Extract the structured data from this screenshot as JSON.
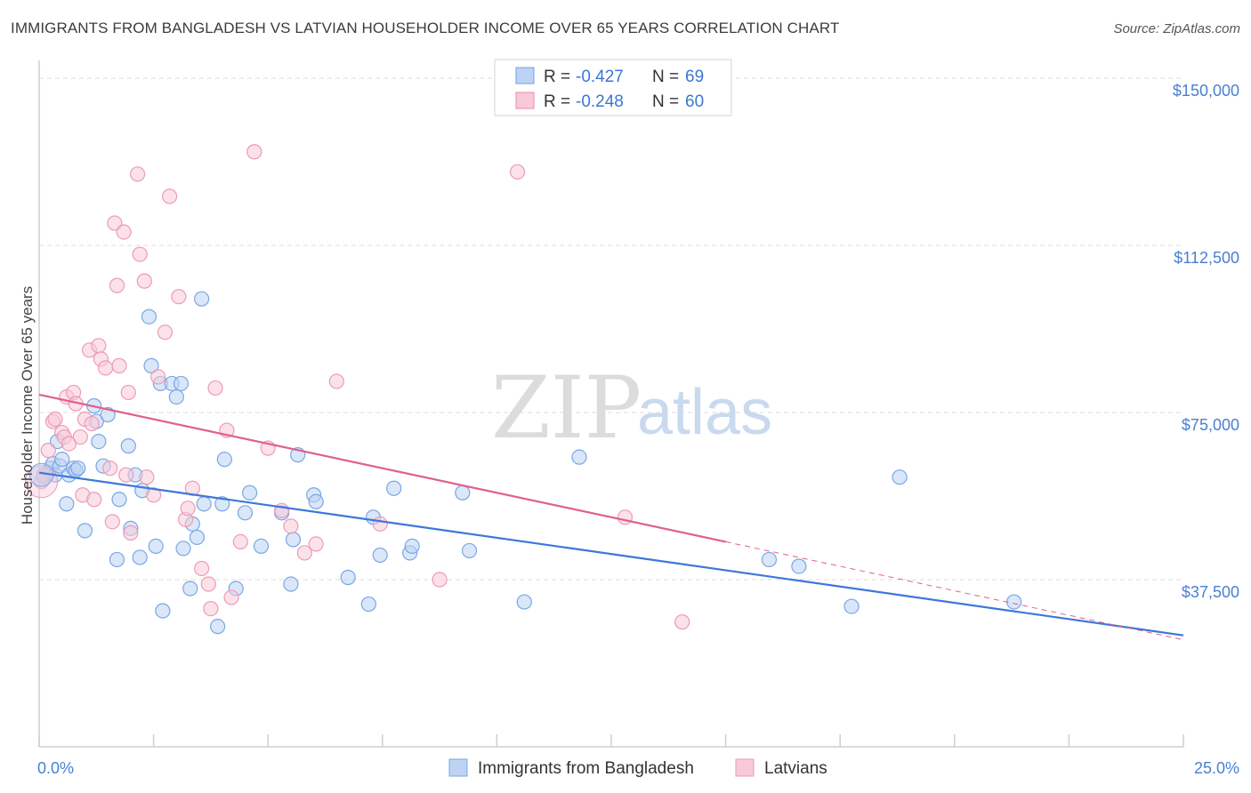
{
  "title": "IMMIGRANTS FROM BANGLADESH VS LATVIAN HOUSEHOLDER INCOME OVER 65 YEARS CORRELATION CHART",
  "source": "Source: ZipAtlas.com",
  "watermark": {
    "zip": "ZIP",
    "atlas": "atlas"
  },
  "legend": {
    "r_label": "R =",
    "n_label": "N =",
    "entries": [
      {
        "r": "-0.427",
        "n": "69",
        "color": "#6fa2e8",
        "fill": "#bcd3f3"
      },
      {
        "r": "-0.248",
        "n": "60",
        "color": "#e88aa8",
        "fill": "#f8cad8"
      }
    ]
  },
  "chart_data": {
    "type": "scatter",
    "ylabel": "Householder Income Over 65 years",
    "xlim": [
      0,
      25
    ],
    "ylim": [
      0,
      152000
    ],
    "x_tick_labels": [
      "0.0%",
      "25.0%"
    ],
    "y_ticks": [
      {
        "value": 37500,
        "label": "$37,500"
      },
      {
        "value": 75000,
        "label": "$75,000"
      },
      {
        "value": 112500,
        "label": "$112,500"
      },
      {
        "value": 150000,
        "label": "$150,000"
      }
    ],
    "grid": true,
    "legend_position": "top-center",
    "series": [
      {
        "name": "Immigrants from Bangladesh",
        "color": "#3b78d8",
        "fill": "#bcd3f3",
        "stroke": "#7aa6e6",
        "trend": {
          "x": [
            0,
            25
          ],
          "y": [
            61500,
            25000
          ]
        },
        "points": [
          [
            0.1,
            60500
          ],
          [
            0.2,
            61500
          ],
          [
            0.25,
            62500
          ],
          [
            0.3,
            63500
          ],
          [
            0.35,
            61000
          ],
          [
            0.4,
            68500
          ],
          [
            0.45,
            63000
          ],
          [
            0.5,
            64500
          ],
          [
            0.6,
            54500
          ],
          [
            0.65,
            61000
          ],
          [
            0.75,
            62500
          ],
          [
            0.8,
            62000
          ],
          [
            0.85,
            62500
          ],
          [
            1.0,
            48500
          ],
          [
            1.2,
            76500
          ],
          [
            1.25,
            73000
          ],
          [
            1.3,
            68500
          ],
          [
            1.4,
            63000
          ],
          [
            1.5,
            74500
          ],
          [
            1.7,
            42000
          ],
          [
            1.75,
            55500
          ],
          [
            1.95,
            67500
          ],
          [
            2.0,
            49000
          ],
          [
            2.1,
            61000
          ],
          [
            2.2,
            42500
          ],
          [
            2.25,
            57500
          ],
          [
            2.4,
            96500
          ],
          [
            2.45,
            85500
          ],
          [
            2.55,
            45000
          ],
          [
            2.65,
            81500
          ],
          [
            2.7,
            30500
          ],
          [
            2.9,
            81500
          ],
          [
            3.0,
            78500
          ],
          [
            3.1,
            81500
          ],
          [
            3.15,
            44500
          ],
          [
            3.3,
            35500
          ],
          [
            3.35,
            50000
          ],
          [
            3.45,
            47000
          ],
          [
            3.55,
            100500
          ],
          [
            3.6,
            54500
          ],
          [
            3.9,
            27000
          ],
          [
            4.0,
            54500
          ],
          [
            4.05,
            64500
          ],
          [
            4.3,
            35500
          ],
          [
            4.5,
            52500
          ],
          [
            4.6,
            57000
          ],
          [
            4.85,
            45000
          ],
          [
            5.3,
            52500
          ],
          [
            5.5,
            36500
          ],
          [
            5.55,
            46500
          ],
          [
            5.65,
            65500
          ],
          [
            6.0,
            56500
          ],
          [
            6.05,
            55000
          ],
          [
            6.75,
            38000
          ],
          [
            7.2,
            32000
          ],
          [
            7.3,
            51500
          ],
          [
            7.45,
            43000
          ],
          [
            7.75,
            58000
          ],
          [
            8.1,
            43500
          ],
          [
            8.15,
            45000
          ],
          [
            9.25,
            57000
          ],
          [
            9.4,
            44000
          ],
          [
            10.6,
            32500
          ],
          [
            11.8,
            65000
          ],
          [
            15.95,
            42000
          ],
          [
            16.6,
            40500
          ],
          [
            17.75,
            31500
          ],
          [
            18.8,
            60500
          ],
          [
            21.3,
            32500
          ]
        ]
      },
      {
        "name": "Latvians",
        "color": "#e0608a",
        "fill": "#f8cad8",
        "stroke": "#ee9ab5",
        "trend": {
          "x": [
            0,
            15
          ],
          "y": [
            79000,
            46000
          ]
        },
        "trend_dashed": {
          "x": [
            15,
            25
          ],
          "y": [
            46000,
            24000
          ]
        },
        "points": [
          [
            0.05,
            59500
          ],
          [
            0.1,
            61000
          ],
          [
            0.2,
            66500
          ],
          [
            0.3,
            73000
          ],
          [
            0.35,
            73500
          ],
          [
            0.5,
            70500
          ],
          [
            0.55,
            69500
          ],
          [
            0.6,
            78500
          ],
          [
            0.65,
            68000
          ],
          [
            0.75,
            79500
          ],
          [
            0.8,
            77000
          ],
          [
            0.9,
            69500
          ],
          [
            0.95,
            56500
          ],
          [
            1.0,
            73500
          ],
          [
            1.1,
            89000
          ],
          [
            1.15,
            72500
          ],
          [
            1.2,
            55500
          ],
          [
            1.3,
            90000
          ],
          [
            1.35,
            87000
          ],
          [
            1.45,
            85000
          ],
          [
            1.55,
            62500
          ],
          [
            1.6,
            50500
          ],
          [
            1.65,
            117500
          ],
          [
            1.7,
            103500
          ],
          [
            1.75,
            85500
          ],
          [
            1.85,
            115500
          ],
          [
            1.9,
            61000
          ],
          [
            1.95,
            79500
          ],
          [
            2.0,
            48000
          ],
          [
            2.15,
            128500
          ],
          [
            2.2,
            110500
          ],
          [
            2.3,
            104500
          ],
          [
            2.35,
            60500
          ],
          [
            2.5,
            56500
          ],
          [
            2.6,
            83000
          ],
          [
            2.75,
            93000
          ],
          [
            2.85,
            123500
          ],
          [
            3.05,
            101000
          ],
          [
            3.2,
            51000
          ],
          [
            3.25,
            53500
          ],
          [
            3.35,
            58000
          ],
          [
            3.55,
            40000
          ],
          [
            3.7,
            36500
          ],
          [
            3.75,
            31000
          ],
          [
            3.85,
            80500
          ],
          [
            4.1,
            71000
          ],
          [
            4.2,
            33500
          ],
          [
            4.4,
            46000
          ],
          [
            4.7,
            133500
          ],
          [
            5.0,
            67000
          ],
          [
            5.3,
            53000
          ],
          [
            5.5,
            49500
          ],
          [
            5.8,
            43500
          ],
          [
            6.05,
            45500
          ],
          [
            6.5,
            82000
          ],
          [
            7.45,
            50000
          ],
          [
            8.75,
            37500
          ],
          [
            10.45,
            129000
          ],
          [
            12.8,
            51500
          ],
          [
            14.05,
            28000
          ]
        ]
      }
    ]
  },
  "bottom_legend": [
    {
      "label": "Immigrants from Bangladesh",
      "fill": "#bcd3f3",
      "stroke": "#7aa6e6"
    },
    {
      "label": "Latvians",
      "fill": "#f8cad8",
      "stroke": "#ee9ab5"
    }
  ]
}
